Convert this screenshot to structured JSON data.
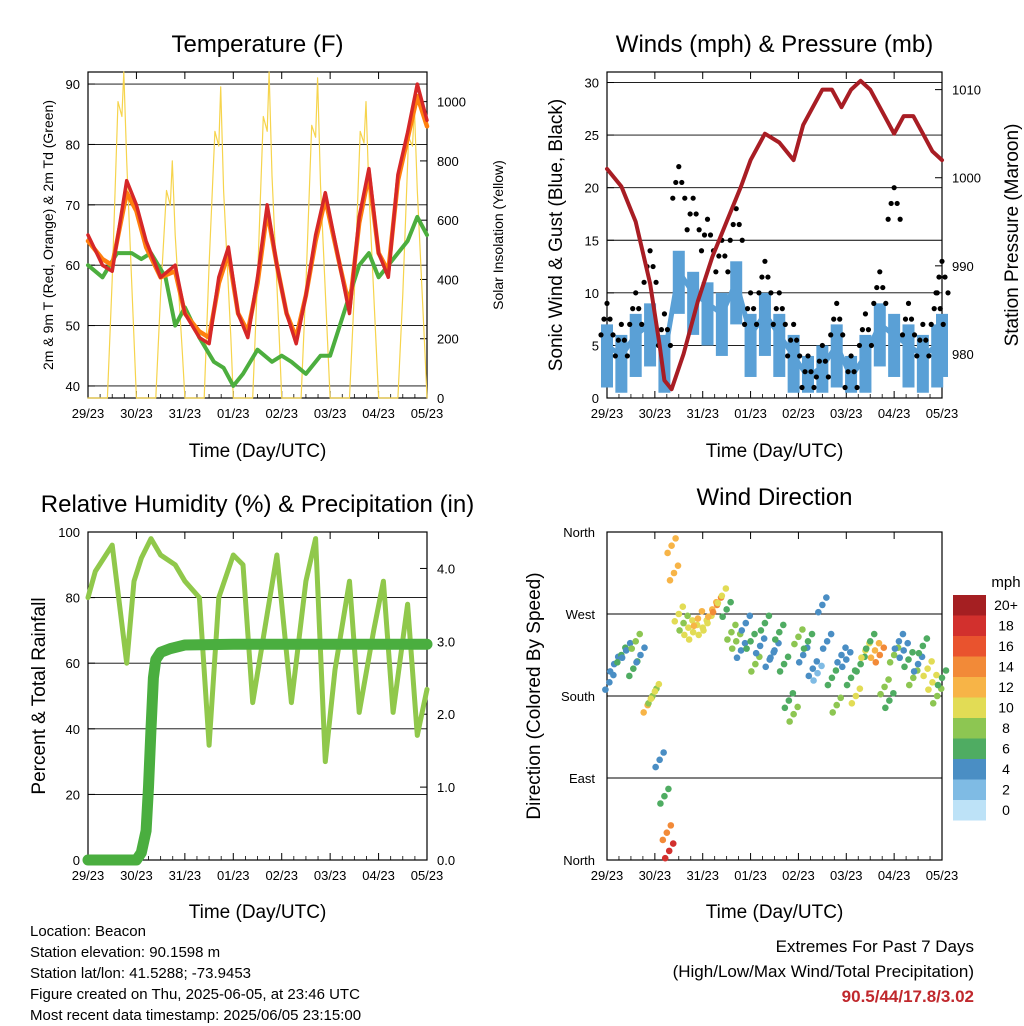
{
  "colors": {
    "t2m": "#d62728",
    "t9m": "#ff7f0e",
    "td": "#4cae3e",
    "solar": "#f6d44c",
    "wind": "#5aa0d6",
    "gust": "#000000",
    "pressure": "#a81d24",
    "rh": "#90c84b",
    "precip": "#4aae3f",
    "accent": "#c0282d"
  },
  "chart_data": [
    {
      "id": "temperature",
      "type": "line",
      "title": "Temperature (F)",
      "xlabel": "Time (Day/UTC)",
      "ylabel": "2m & 9m T (Red, Orange) & 2m Td (Green)",
      "ylabel_right": "Solar Insolation (Yellow)",
      "x_ticks": [
        "29/23",
        "30/23",
        "31/23",
        "01/23",
        "02/23",
        "03/23",
        "04/23",
        "05/23"
      ],
      "ylim": [
        38,
        92
      ],
      "y_ticks": [
        40,
        50,
        60,
        70,
        80,
        90
      ],
      "ylim_right": [
        0,
        1100
      ],
      "y_ticks_right": [
        0,
        200,
        400,
        600,
        800,
        1000
      ],
      "grid": "horizontal",
      "series": [
        {
          "name": "2m T",
          "axis": "left",
          "x": [
            0,
            0.3,
            0.5,
            0.8,
            1.0,
            1.2,
            1.5,
            1.8,
            2.0,
            2.3,
            2.5,
            2.7,
            2.9,
            3.1,
            3.3,
            3.5,
            3.7,
            3.9,
            4.1,
            4.3,
            4.5,
            4.7,
            4.9,
            5.2,
            5.4,
            5.6,
            5.8,
            6.0,
            6.2,
            6.4,
            6.6,
            6.8,
            7.0
          ],
          "values": [
            65,
            60,
            59,
            74,
            70,
            64,
            58,
            60,
            52,
            48,
            47,
            58,
            63,
            52,
            48,
            58,
            70,
            60,
            52,
            47,
            55,
            65,
            72,
            60,
            52,
            68,
            76,
            62,
            58,
            75,
            82,
            90,
            84
          ]
        },
        {
          "name": "9m T",
          "axis": "left",
          "x": [
            0,
            0.3,
            0.5,
            0.8,
            1.0,
            1.2,
            1.5,
            1.8,
            2.0,
            2.3,
            2.5,
            2.7,
            2.9,
            3.1,
            3.3,
            3.5,
            3.7,
            3.9,
            4.1,
            4.3,
            4.5,
            4.7,
            4.9,
            5.2,
            5.4,
            5.6,
            5.8,
            6.0,
            6.2,
            6.4,
            6.6,
            6.8,
            7.0
          ],
          "values": [
            64,
            61,
            60,
            72,
            69,
            63,
            58,
            59,
            52,
            49,
            48,
            57,
            62,
            52,
            49,
            57,
            69,
            60,
            52,
            48,
            55,
            64,
            71,
            60,
            53,
            67,
            75,
            62,
            59,
            74,
            81,
            88,
            83
          ]
        },
        {
          "name": "2m Td",
          "axis": "left",
          "x": [
            0,
            0.3,
            0.6,
            0.9,
            1.1,
            1.3,
            1.6,
            1.8,
            2.0,
            2.3,
            2.6,
            2.8,
            3.0,
            3.2,
            3.5,
            3.8,
            4.0,
            4.2,
            4.5,
            4.8,
            5.0,
            5.2,
            5.4,
            5.6,
            5.8,
            6.0,
            6.2,
            6.4,
            6.6,
            6.8,
            7.0
          ],
          "values": [
            60,
            58,
            62,
            62,
            61,
            62,
            58,
            50,
            53,
            48,
            44,
            43,
            40,
            42,
            46,
            44,
            45,
            44,
            42,
            45,
            45,
            50,
            55,
            60,
            62,
            58,
            60,
            62,
            64,
            68,
            65
          ]
        },
        {
          "name": "Solar Insolation",
          "axis": "right",
          "x": [
            0,
            0.4,
            0.5,
            0.62,
            0.7,
            0.74,
            0.8,
            0.95,
            1.0,
            1.4,
            1.5,
            1.62,
            1.7,
            1.74,
            1.8,
            1.95,
            2.0,
            2.4,
            2.5,
            2.62,
            2.7,
            2.74,
            2.8,
            2.95,
            3.0,
            3.4,
            3.5,
            3.62,
            3.7,
            3.74,
            3.8,
            3.95,
            4.0,
            4.4,
            4.5,
            4.62,
            4.7,
            4.74,
            4.8,
            4.95,
            5.0,
            5.4,
            5.5,
            5.62,
            5.7,
            5.74,
            5.8,
            5.95,
            6.0,
            6.4,
            6.5,
            6.62,
            6.7,
            6.74,
            6.8,
            6.95,
            7.0
          ],
          "values": [
            0,
            0,
            400,
            1000,
            950,
            1100,
            800,
            200,
            0,
            0,
            350,
            700,
            650,
            800,
            550,
            150,
            0,
            0,
            450,
            900,
            850,
            1050,
            700,
            200,
            0,
            0,
            400,
            950,
            900,
            1100,
            750,
            200,
            0,
            0,
            380,
            920,
            880,
            1080,
            720,
            180,
            0,
            0,
            360,
            900,
            860,
            1000,
            700,
            180,
            0,
            0,
            350,
            880,
            850,
            980,
            700,
            180,
            0
          ]
        }
      ]
    },
    {
      "id": "winds",
      "type": "line",
      "title": "Winds (mph) & Pressure (mb)",
      "xlabel": "Time (Day/UTC)",
      "ylabel": "Sonic Wind & Gust (Blue, Black)",
      "ylabel_right": "Station Pressure (Maroon)",
      "x_ticks": [
        "29/23",
        "30/23",
        "31/23",
        "01/23",
        "02/23",
        "03/23",
        "04/23",
        "05/23"
      ],
      "ylim": [
        0,
        31
      ],
      "y_ticks": [
        0,
        5,
        10,
        15,
        20,
        25,
        30
      ],
      "ylim_right": [
        975,
        1012
      ],
      "y_ticks_right": [
        980,
        990,
        1000,
        1010
      ],
      "grid": "horizontal",
      "series": [
        {
          "name": "Sonic Wind",
          "axis": "left",
          "x": [
            0,
            0.3,
            0.6,
            0.9,
            1.2,
            1.5,
            1.8,
            2.1,
            2.4,
            2.7,
            3.0,
            3.3,
            3.6,
            3.9,
            4.2,
            4.5,
            4.8,
            5.1,
            5.4,
            5.7,
            6.0,
            6.3,
            6.6,
            6.9,
            7.0
          ],
          "values": [
            5,
            4,
            6,
            7,
            4,
            12,
            10,
            9,
            8,
            11,
            6,
            8,
            6,
            4,
            2,
            3,
            5,
            2,
            4,
            7,
            6,
            5,
            4,
            5,
            6
          ]
        },
        {
          "name": "Gust",
          "axis": "left",
          "x": [
            0,
            0.3,
            0.6,
            0.9,
            1.2,
            1.5,
            1.8,
            2.1,
            2.4,
            2.7,
            3.0,
            3.3,
            3.6,
            3.9,
            4.2,
            4.5,
            4.8,
            5.1,
            5.4,
            5.7,
            6.0,
            6.3,
            6.6,
            6.9,
            7.0
          ],
          "values": [
            9,
            7,
            10,
            14,
            8,
            22,
            19,
            17,
            15,
            18,
            10,
            13,
            10,
            7,
            4,
            5,
            9,
            4,
            8,
            12,
            20,
            9,
            7,
            10,
            13
          ]
        },
        {
          "name": "Station Pressure",
          "axis": "right",
          "x": [
            0,
            0.3,
            0.6,
            0.9,
            1.1,
            1.2,
            1.35,
            1.6,
            1.9,
            2.2,
            2.5,
            2.8,
            3.0,
            3.3,
            3.6,
            3.9,
            4.1,
            4.3,
            4.5,
            4.7,
            4.9,
            5.1,
            5.3,
            5.5,
            5.8,
            6.0,
            6.2,
            6.4,
            6.6,
            6.8,
            7.0
          ],
          "values": [
            1001,
            999,
            995,
            988,
            981,
            977,
            976,
            980,
            986,
            991,
            995,
            999,
            1002,
            1005,
            1004,
            1002,
            1006,
            1008,
            1010,
            1010,
            1008,
            1010,
            1011,
            1010,
            1007,
            1005,
            1007,
            1007,
            1005,
            1003,
            1002
          ]
        }
      ]
    },
    {
      "id": "humidity",
      "type": "line",
      "title": "Relative Humidity (%) & Precipitation (in)",
      "xlabel": "Time (Day/UTC)",
      "ylabel": "Percent & Total Rainfall",
      "x_ticks": [
        "29/23",
        "30/23",
        "31/23",
        "01/23",
        "02/23",
        "03/23",
        "04/23",
        "05/23"
      ],
      "ylim": [
        0,
        100
      ],
      "y_ticks": [
        0,
        20,
        40,
        60,
        80,
        100
      ],
      "ylim_right": [
        0,
        4.5
      ],
      "y_ticks_right": [
        "0.0",
        "1.0",
        "2.0",
        "3.0",
        "4.0"
      ],
      "grid": "horizontal",
      "series": [
        {
          "name": "Relative Humidity",
          "axis": "left",
          "x": [
            0,
            0.15,
            0.5,
            0.8,
            0.95,
            1.1,
            1.3,
            1.5,
            1.8,
            2.0,
            2.3,
            2.5,
            2.7,
            3.0,
            3.2,
            3.4,
            3.7,
            3.9,
            4.2,
            4.5,
            4.7,
            4.9,
            5.1,
            5.4,
            5.6,
            5.9,
            6.1,
            6.3,
            6.6,
            6.8,
            7.0
          ],
          "values": [
            80,
            88,
            96,
            60,
            85,
            92,
            98,
            93,
            90,
            85,
            80,
            35,
            80,
            93,
            90,
            48,
            75,
            93,
            48,
            85,
            98,
            30,
            58,
            85,
            45,
            70,
            85,
            45,
            78,
            38,
            52
          ]
        },
        {
          "name": "Total Precipitation",
          "axis": "right",
          "x": [
            0,
            0.5,
            1.0,
            1.1,
            1.2,
            1.25,
            1.3,
            1.35,
            1.4,
            1.5,
            1.7,
            2.0,
            3.0,
            4.0,
            5.0,
            6.0,
            7.0
          ],
          "values": [
            0,
            0,
            0,
            0.1,
            0.4,
            1.0,
            1.8,
            2.5,
            2.75,
            2.85,
            2.9,
            2.95,
            2.96,
            2.96,
            2.96,
            2.96,
            2.96
          ]
        }
      ]
    },
    {
      "id": "direction",
      "type": "scatter",
      "title": "Wind Direction",
      "xlabel": "Time (Day/UTC)",
      "ylabel": "Direction (Colored By Speed)",
      "x_ticks": [
        "29/23",
        "30/23",
        "31/23",
        "01/23",
        "02/23",
        "03/23",
        "04/23",
        "05/23"
      ],
      "y_ticks": [
        "North",
        "East",
        "South",
        "West",
        "North"
      ],
      "ylim": [
        0,
        360
      ],
      "grid": "horizontal",
      "colorbar": {
        "unit": "mph",
        "labels": [
          "20+",
          "18",
          "16",
          "14",
          "12",
          "10",
          "8",
          "6",
          "4",
          "2",
          "0"
        ],
        "colors": [
          "#a51f22",
          "#d2302d",
          "#e9532e",
          "#f28a38",
          "#f7b447",
          "#e2dc55",
          "#8dc652",
          "#4fac62",
          "#4a8ec4",
          "#7fbbe4",
          "#bde2f7"
        ]
      },
      "series": [
        {
          "name": "Direction",
          "x": [
            0.05,
            0.15,
            0.3,
            0.4,
            0.55,
            0.6,
            0.7,
            0.85,
            0.95,
            1.0,
            1.1,
            1.2,
            1.25,
            1.3,
            1.35,
            1.4,
            1.5,
            1.6,
            1.7,
            1.8,
            1.9,
            2.0,
            2.1,
            2.2,
            2.3,
            2.4,
            2.5,
            2.6,
            2.7,
            2.8,
            2.9,
            3.0,
            3.1,
            3.2,
            3.3,
            3.4,
            3.5,
            3.6,
            3.7,
            3.8,
            3.9,
            4.0,
            4.1,
            4.2,
            4.3,
            4.4,
            4.5,
            4.6,
            4.7,
            4.8,
            4.9,
            5.0,
            5.1,
            5.2,
            5.3,
            5.4,
            5.5,
            5.6,
            5.7,
            5.8,
            5.9,
            6.0,
            6.1,
            6.2,
            6.3,
            6.4,
            6.5,
            6.6,
            6.7,
            6.8,
            6.9,
            7.0
          ],
          "directions": [
            195,
            215,
            225,
            230,
            210,
            240,
            225,
            170,
            180,
            185,
            110,
            70,
            30,
            10,
            345,
            315,
            270,
            260,
            255,
            250,
            265,
            255,
            260,
            275,
            280,
            290,
            275,
            250,
            240,
            230,
            260,
            240,
            215,
            235,
            260,
            220,
            230,
            250,
            215,
            175,
            160,
            245,
            225,
            240,
            210,
            205,
            280,
            240,
            200,
            170,
            225,
            220,
            200,
            180,
            215,
            230,
            240,
            230,
            225,
            190,
            175,
            225,
            240,
            230,
            220,
            200,
            215,
            235,
            210,
            195,
            180,
            200
          ],
          "speeds": [
            3,
            4,
            5,
            4,
            6,
            8,
            4,
            12,
            8,
            10,
            3,
            5,
            14,
            18,
            12,
            12,
            10,
            8,
            9,
            10,
            12,
            10,
            9,
            12,
            14,
            10,
            6,
            8,
            7,
            4,
            3,
            6,
            8,
            4,
            6,
            3,
            4,
            6,
            5,
            6,
            8,
            7,
            3,
            6,
            4,
            2,
            3,
            4,
            5,
            8,
            4,
            3,
            5,
            9,
            6,
            10,
            6,
            12,
            14,
            8,
            6,
            7,
            4,
            3,
            5,
            8,
            4,
            5,
            10,
            9,
            8,
            6
          ]
        }
      ]
    }
  ],
  "footer": {
    "location": "Location: Beacon",
    "elevation": "Station elevation: 90.1598 m",
    "latlon": "Station lat/lon: 41.5288; -73.9453",
    "created": "Figure created on Thu, 2025-06-05, at 23:46 UTC",
    "latest": "Most recent data timestamp: 2025/06/05 23:15:00",
    "extremes_title": "Extremes For Past 7 Days",
    "extremes_subtitle": "(High/Low/Max Wind/Total Precipitation)",
    "extremes_values": "90.5/44/17.8/3.02"
  }
}
